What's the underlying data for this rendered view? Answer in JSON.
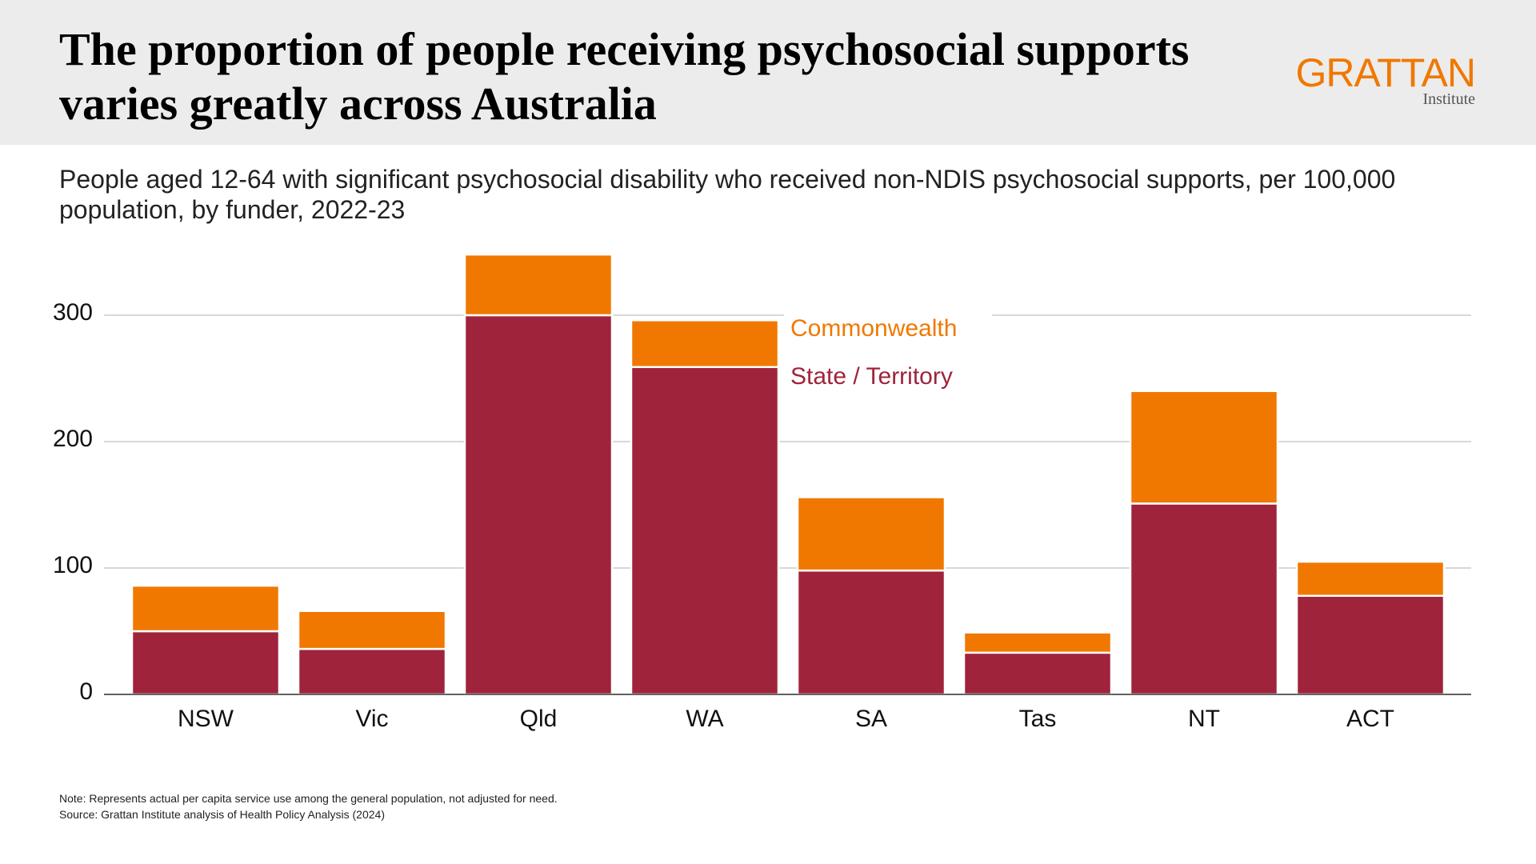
{
  "chart_data": {
    "type": "stacked_bar",
    "title": "The proportion of people receiving psychosocial supports varies greatly across Australia",
    "subtitle": "People aged 12-64 with significant psychosocial disability who received non-NDIS psychosocial supports, per 100,000 population, by funder, 2022-23",
    "brand": "GRATTAN",
    "brand_sub": "Institute",
    "categories": [
      "NSW",
      "Vic",
      "Qld",
      "WA",
      "SA",
      "Tas",
      "NT",
      "ACT"
    ],
    "series": [
      {
        "name": "State / Territory",
        "color": "#a0233c",
        "values": [
          50,
          36,
          300,
          259,
          98,
          33,
          151,
          78
        ]
      },
      {
        "name": "Commonwealth",
        "color": "#f07800",
        "values": [
          36,
          30,
          48,
          37,
          58,
          16,
          89,
          27
        ]
      }
    ],
    "ylim": [
      0,
      350
    ],
    "yticks": [
      0,
      100,
      200,
      300
    ],
    "grid": true,
    "notes": [
      "Note: Represents actual per capita service use among the general population, not adjusted for need.",
      "Source: Grattan Institute analysis of Health Policy Analysis (2024)"
    ]
  }
}
